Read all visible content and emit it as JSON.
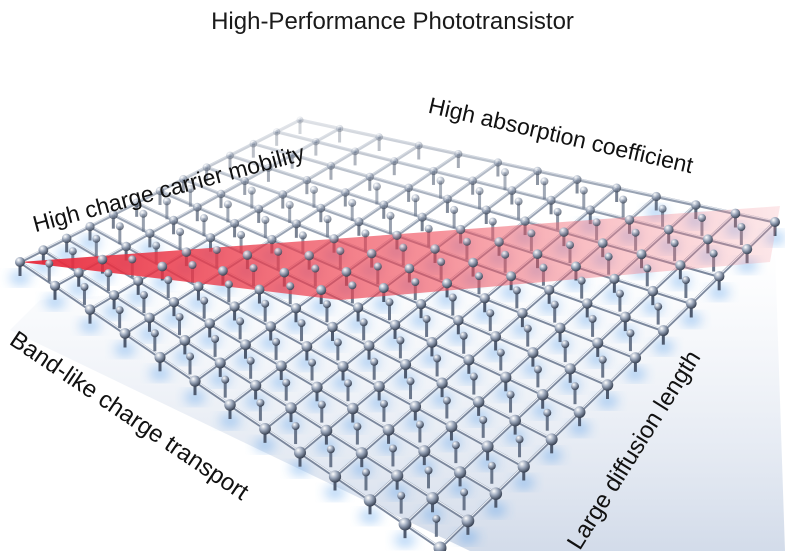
{
  "title": "High-Performance Phototransistor",
  "labels": {
    "mobility": "High charge carrier mobility",
    "absorption": "High absorption coefficient",
    "band_transport": "Band-like charge transport",
    "diffusion": "Large diffusion length"
  },
  "colors": {
    "beam": "#e8283a",
    "glow": "#3a8fe8",
    "lattice_metal": "#8a96aa",
    "text": "#111111"
  }
}
